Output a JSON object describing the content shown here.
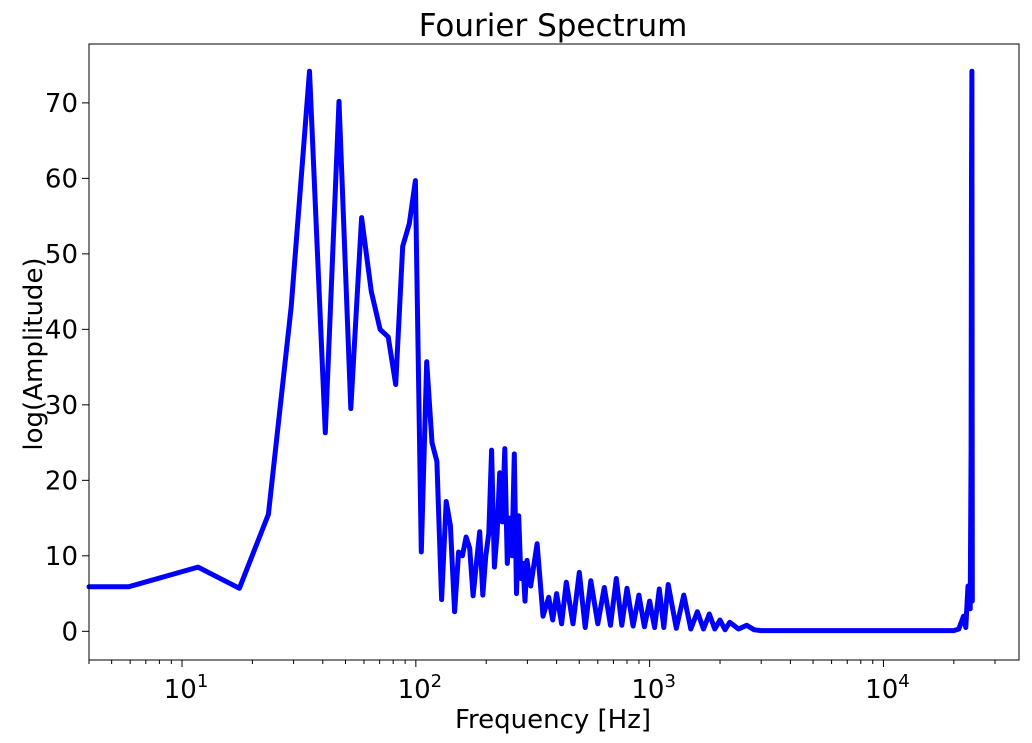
{
  "chart_data": {
    "type": "line",
    "title": "Fourier Spectrum",
    "xlabel": "Frequency [Hz]",
    "ylabel": "log(Amplitude)",
    "xscale": "log",
    "xlim": [
      4,
      38000
    ],
    "ylim": [
      -3.8,
      77.8
    ],
    "grid": false,
    "legend": "none",
    "x_major_ticks": [
      10,
      100,
      1000,
      10000
    ],
    "x_tick_labels": [
      {
        "base": "10",
        "exp": "1"
      },
      {
        "base": "10",
        "exp": "2"
      },
      {
        "base": "10",
        "exp": "3"
      },
      {
        "base": "10",
        "exp": "4"
      }
    ],
    "y_ticks": [
      0,
      10,
      20,
      30,
      40,
      50,
      60,
      70
    ],
    "y_tick_labels": [
      "0",
      "10",
      "20",
      "30",
      "40",
      "50",
      "60",
      "70"
    ],
    "series": [
      {
        "color": "#0000ff",
        "x": [
          4,
          5.9,
          11.7,
          17.6,
          23.4,
          29.3,
          35.1,
          41,
          46.9,
          52.7,
          58.6,
          64.5,
          70.3,
          76.2,
          82,
          87.9,
          93.8,
          99.6,
          105.5,
          111.3,
          117.2,
          123,
          128.9,
          134.8,
          140.6,
          146.5,
          152.3,
          158.2,
          164.1,
          169.9,
          175.8,
          181.6,
          187.5,
          193.4,
          199.2,
          205.1,
          210.9,
          216.8,
          222.7,
          228.5,
          234.4,
          240.2,
          246.1,
          252,
          257.8,
          263.7,
          269.5,
          275.4,
          281.3,
          287.1,
          293,
          298.8,
          310,
          330,
          350,
          370,
          385,
          400,
          420,
          440,
          470,
          500,
          530,
          560,
          600,
          640,
          680,
          720,
          760,
          800,
          850,
          900,
          950,
          1000,
          1050,
          1100,
          1150,
          1200,
          1300,
          1400,
          1500,
          1600,
          1700,
          1800,
          1900,
          2000,
          2100,
          2200,
          2400,
          2600,
          2800,
          3000,
          5000,
          10000,
          15000,
          20000,
          21000,
          22000,
          22500,
          23000,
          23500,
          23700,
          23800,
          23900,
          24000
        ],
        "y": [
          5.9,
          5.9,
          8.5,
          5.7,
          15.5,
          43,
          74.2,
          26.3,
          70.2,
          29.5,
          54.8,
          45,
          40,
          39,
          32.7,
          51,
          54,
          59.7,
          10.5,
          35.7,
          25,
          22.5,
          4.2,
          17.2,
          14,
          2.6,
          10.5,
          10,
          12.5,
          11,
          4.7,
          9,
          13.2,
          4.8,
          10,
          13,
          24,
          8.5,
          13,
          21,
          14.5,
          24.2,
          9,
          15,
          10,
          23.5,
          5,
          15.3,
          7,
          9,
          4,
          9.4,
          6,
          11.6,
          2,
          4.5,
          1.5,
          5,
          1,
          6.5,
          1,
          7.8,
          0.5,
          6.7,
          1,
          5.8,
          0.8,
          7,
          0.8,
          5.7,
          0.7,
          4.8,
          0.6,
          4,
          0.5,
          5.6,
          0.5,
          6.2,
          0.4,
          4.8,
          0.3,
          2.6,
          0.3,
          2.3,
          0.3,
          1.5,
          0.2,
          1.2,
          0.3,
          0.8,
          0.2,
          0.1,
          0.1,
          0.1,
          0.1,
          0.1,
          0.3,
          2,
          0.5,
          6,
          3,
          24,
          60,
          74.2,
          4
        ]
      }
    ]
  }
}
